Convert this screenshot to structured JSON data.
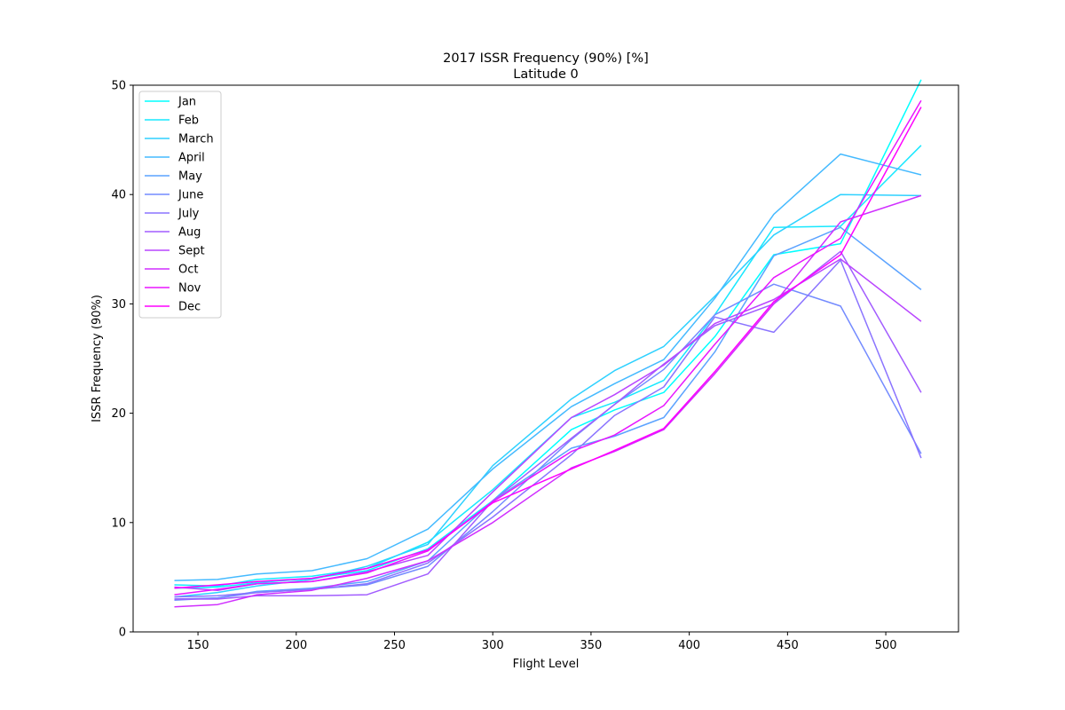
{
  "chart_data": {
    "type": "line",
    "title": "2017 ISSR Frequency (90%) [%]",
    "subtitle": "Latitude 0",
    "xlabel": "Flight Level",
    "ylabel": "ISSR Frequency (90%)",
    "xlim": [
      117,
      537
    ],
    "ylim": [
      0,
      50
    ],
    "xticks": [
      150,
      200,
      250,
      300,
      350,
      400,
      450,
      500
    ],
    "yticks": [
      0,
      10,
      20,
      30,
      40,
      50
    ],
    "grid": false,
    "legend": "top-left",
    "x": [
      138,
      160,
      180,
      208,
      236,
      267,
      300,
      340,
      362,
      387,
      413,
      443,
      477,
      518
    ],
    "series": [
      {
        "name": "Jan",
        "color": "#00ffff",
        "values": [
          4.0,
          4.1,
          4.5,
          4.9,
          5.6,
          7.6,
          12.0,
          18.5,
          20.3,
          21.9,
          27.0,
          34.5,
          35.5,
          50.5
        ]
      },
      {
        "name": "Feb",
        "color": "#17e8ff",
        "values": [
          4.3,
          4.2,
          4.8,
          5.1,
          5.8,
          8.2,
          13.0,
          19.6,
          21.0,
          23.0,
          29.0,
          37.0,
          37.1,
          44.5
        ]
      },
      {
        "name": "March",
        "color": "#2ed1ff",
        "values": [
          3.2,
          3.6,
          4.2,
          4.8,
          6.0,
          8.0,
          15.2,
          21.3,
          23.9,
          26.1,
          30.7,
          36.3,
          40.0,
          39.9
        ]
      },
      {
        "name": "April",
        "color": "#45baff",
        "values": [
          4.7,
          4.8,
          5.3,
          5.6,
          6.7,
          9.4,
          14.9,
          20.6,
          22.7,
          24.9,
          30.5,
          38.2,
          43.7,
          41.8
        ]
      },
      {
        "name": "May",
        "color": "#5ca3ff",
        "values": [
          3.0,
          3.1,
          3.7,
          4.0,
          4.6,
          6.5,
          12.0,
          16.8,
          17.9,
          19.6,
          25.6,
          34.4,
          37.0,
          31.3
        ]
      },
      {
        "name": "June",
        "color": "#748bff",
        "values": [
          2.9,
          3.1,
          3.6,
          3.9,
          4.3,
          6.0,
          11.0,
          17.6,
          20.8,
          24.0,
          29.0,
          31.8,
          29.8,
          16.3
        ]
      },
      {
        "name": "July",
        "color": "#8b74ff",
        "values": [
          3.2,
          3.3,
          3.6,
          3.9,
          4.4,
          6.3,
          10.5,
          16.2,
          19.8,
          22.4,
          28.8,
          27.4,
          34.0,
          15.9
        ]
      },
      {
        "name": "Aug",
        "color": "#a25dff",
        "values": [
          3.0,
          3.0,
          3.3,
          3.3,
          3.4,
          5.3,
          12.0,
          17.7,
          20.8,
          24.5,
          28.0,
          30.0,
          34.8,
          21.9
        ]
      },
      {
        "name": "Sept",
        "color": "#b946ff",
        "values": [
          4.1,
          3.8,
          4.4,
          4.6,
          5.5,
          7.0,
          12.8,
          19.6,
          21.7,
          24.4,
          28.2,
          30.4,
          34.1,
          28.4
        ]
      },
      {
        "name": "Oct",
        "color": "#d02fff",
        "values": [
          2.3,
          2.5,
          3.4,
          3.8,
          4.9,
          6.5,
          10.0,
          15.0,
          16.5,
          18.5,
          23.6,
          30.0,
          37.5,
          39.9
        ]
      },
      {
        "name": "Nov",
        "color": "#e817ff",
        "values": [
          3.4,
          3.9,
          4.4,
          4.6,
          5.4,
          7.4,
          11.9,
          16.5,
          18.0,
          20.7,
          26.3,
          32.4,
          36.0,
          48.6
        ]
      },
      {
        "name": "Dec",
        "color": "#ff00ff",
        "values": [
          4.0,
          4.3,
          4.6,
          4.9,
          5.8,
          7.5,
          11.8,
          14.9,
          16.6,
          18.6,
          23.8,
          30.2,
          34.5,
          48.0
        ]
      }
    ]
  }
}
